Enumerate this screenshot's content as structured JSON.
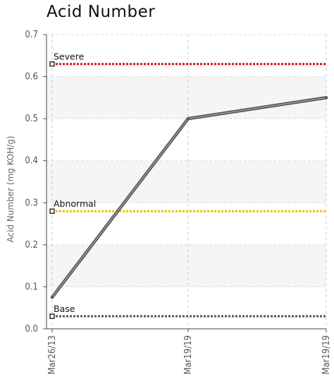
{
  "chart_data": {
    "type": "line",
    "title": "Acid Number",
    "ylabel": "Acid Number (mg KOH/g)",
    "xlabel": "",
    "categories": [
      "Mar26/13",
      "Mar19/19",
      "Mar19/19"
    ],
    "series": [
      {
        "values": [
          0.075,
          0.5,
          0.55
        ],
        "color": "#666666"
      }
    ],
    "ylim": [
      0,
      0.7
    ],
    "yticks": [
      "0.0",
      "0.1",
      "0.2",
      "0.3",
      "0.4",
      "0.5",
      "0.6",
      "0.7"
    ],
    "grid": true,
    "reference_lines": [
      {
        "name": "Severe",
        "value": 0.63,
        "color": "#e01010"
      },
      {
        "name": "Abnormal",
        "value": 0.28,
        "color": "#f0c000"
      },
      {
        "name": "Base",
        "value": 0.03,
        "color": "#555555"
      }
    ],
    "band_colors": [
      "#ffffff",
      "#f5f5f5"
    ]
  }
}
